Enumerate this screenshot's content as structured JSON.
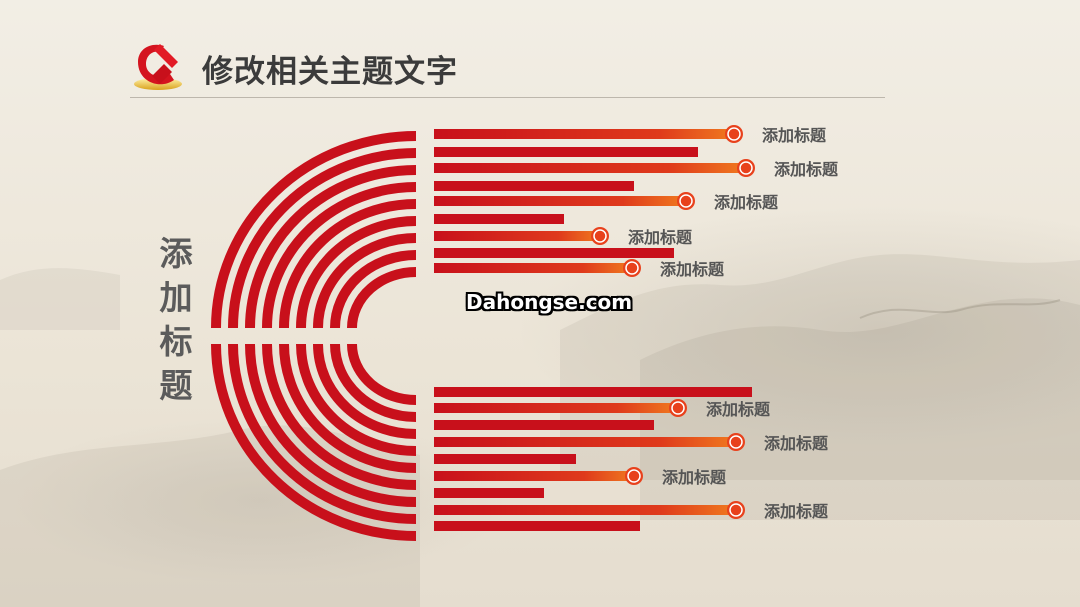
{
  "slide": {
    "title": "修改相关主题文字",
    "side_label": "添加标题",
    "watermark": "Dahongse.com"
  },
  "top_bars": [
    {
      "label": "添加标题",
      "marker": true
    },
    {
      "label": "",
      "marker": false
    },
    {
      "label": "添加标题",
      "marker": true
    },
    {
      "label": "",
      "marker": false
    },
    {
      "label": "添加标题",
      "marker": true
    },
    {
      "label": "",
      "marker": false
    },
    {
      "label": "添加标题",
      "marker": true
    },
    {
      "label": "",
      "marker": false
    },
    {
      "label": "添加标题",
      "marker": true
    }
  ],
  "bottom_bars": [
    {
      "label": "",
      "marker": false
    },
    {
      "label": "添加标题",
      "marker": true
    },
    {
      "label": "",
      "marker": false
    },
    {
      "label": "添加标题",
      "marker": true
    },
    {
      "label": "",
      "marker": false
    },
    {
      "label": "添加标题",
      "marker": true
    },
    {
      "label": "",
      "marker": false
    },
    {
      "label": "添加标题",
      "marker": true
    },
    {
      "label": "",
      "marker": false
    }
  ],
  "colors": {
    "red": "#c8101b",
    "orange": "#f07020",
    "title": "#3b3b3b",
    "label": "#555555"
  }
}
